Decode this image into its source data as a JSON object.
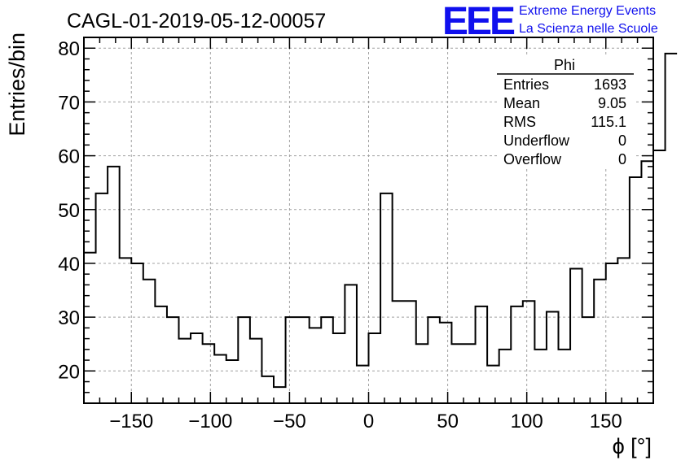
{
  "header": {
    "title": "CAGL-01-2019-05-12-00057",
    "logo_text": "EEE",
    "logo_line1": "Extreme Energy Events",
    "logo_line2": "La Scienza nelle Scuole",
    "logo_color": "#1010ee"
  },
  "stats_box": {
    "name": "Phi",
    "rows": [
      {
        "label": "Entries",
        "value": "1693"
      },
      {
        "label": "Mean",
        "value": "9.05"
      },
      {
        "label": "RMS",
        "value": "115.1"
      },
      {
        "label": "Underflow",
        "value": "0"
      },
      {
        "label": "Overflow",
        "value": "0"
      }
    ]
  },
  "chart_data": {
    "type": "bar",
    "histogram": true,
    "xlabel": "ϕ [°]",
    "ylabel": "Entries/bin",
    "xlim": [
      -180,
      180
    ],
    "ylim": [
      14,
      82
    ],
    "xticks": [
      -150,
      -100,
      -50,
      0,
      50,
      100,
      150
    ],
    "yticks": [
      20,
      30,
      40,
      50,
      60,
      70,
      80
    ],
    "grid": true,
    "bin_edges_start": -180,
    "bin_width": 7.5,
    "values": [
      42,
      53,
      58,
      41,
      40,
      37,
      32,
      30,
      26,
      27,
      25,
      23,
      22,
      30,
      26,
      19,
      17,
      30,
      30,
      28,
      30,
      27,
      36,
      21,
      27,
      53,
      33,
      33,
      25,
      30,
      29,
      25,
      25,
      32,
      21,
      24,
      32,
      33,
      24,
      31,
      24,
      39,
      30,
      37,
      40,
      41,
      56,
      59,
      61,
      79
    ]
  }
}
